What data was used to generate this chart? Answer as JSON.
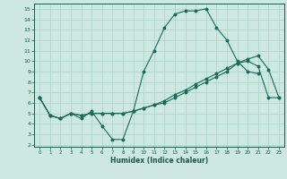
{
  "xlabel": "Humidex (Indice chaleur)",
  "background_color": "#cce8e0",
  "grid_color": "#aad0c8",
  "line_color": "#1a6b5a",
  "tick_color": "#1a5a4a",
  "x_ticks": [
    0,
    1,
    2,
    3,
    4,
    5,
    6,
    7,
    8,
    9,
    10,
    11,
    12,
    13,
    14,
    15,
    16,
    17,
    18,
    19,
    20,
    21,
    22,
    23
  ],
  "y_ticks": [
    2,
    3,
    4,
    5,
    6,
    7,
    8,
    9,
    10,
    11,
    12,
    13,
    14,
    15
  ],
  "ylim": [
    1.8,
    15.5
  ],
  "xlim": [
    -0.5,
    23.5
  ],
  "curve1_y": [
    6.5,
    4.8,
    4.5,
    5.0,
    4.5,
    5.2,
    3.8,
    2.5,
    2.5,
    5.2,
    9.0,
    11.0,
    13.2,
    14.5,
    14.8,
    14.8,
    15.0,
    13.2,
    12.0,
    10.0,
    9.0,
    8.8,
    null,
    null
  ],
  "curve2_y": [
    6.5,
    4.8,
    4.5,
    5.0,
    4.8,
    5.0,
    5.0,
    5.0,
    5.0,
    5.2,
    5.5,
    5.8,
    6.2,
    6.8,
    7.2,
    7.8,
    8.3,
    8.8,
    9.3,
    9.8,
    10.2,
    10.5,
    9.2,
    6.5
  ],
  "curve3_y": [
    6.5,
    4.8,
    4.5,
    5.0,
    4.8,
    5.0,
    5.0,
    5.0,
    5.0,
    5.2,
    5.5,
    5.8,
    6.0,
    6.5,
    7.0,
    7.5,
    8.0,
    8.5,
    9.0,
    9.8,
    10.0,
    9.5,
    6.5,
    6.5
  ]
}
